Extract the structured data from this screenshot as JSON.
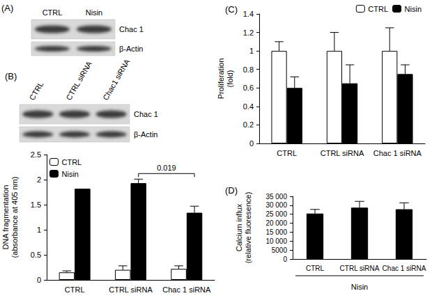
{
  "blots": [
    {
      "panel": "(A)",
      "lanes": [
        "CTRL",
        "Nisin"
      ],
      "bands": [
        "Chac 1",
        "β-Actin"
      ]
    },
    {
      "lanes": [
        "CTRL",
        "CTRL siRNA",
        "Chac1 siRNA"
      ],
      "bands": [
        "Chac 1",
        "β-Actin"
      ]
    }
  ],
  "chart_data": [
    {
      "type": "bar",
      "title": "(B)",
      "ylabel": "DNA fragmentation (absorbance at 405 nm)",
      "categories": [
        "CTRL",
        "CTRL siRNA",
        "Chac 1 siRNA"
      ],
      "series": [
        {
          "name": "CTRL",
          "color": "#ffffff",
          "values": [
            0.15,
            0.2,
            0.22
          ],
          "errors": [
            0.03,
            0.08,
            0.06
          ]
        },
        {
          "name": "Nisin",
          "color": "#000000",
          "values": [
            1.82,
            1.93,
            1.34
          ],
          "errors": [
            0,
            0.08,
            0.13
          ]
        }
      ],
      "ylim": [
        0,
        2.5
      ],
      "yticks": [
        0,
        0.5,
        1,
        1.5,
        2,
        2.5
      ],
      "grid": false,
      "legend": "upper left",
      "annotations": [
        {
          "text": "0.019",
          "series": "Nisin",
          "from": "CTRL siRNA",
          "to": "Chac 1 siRNA"
        }
      ]
    },
    {
      "type": "bar",
      "title": "(C)",
      "ylabel": "Proliferation (fold)",
      "categories": [
        "CTRL",
        "CTRL siRNA",
        "Chac 1 siRNA"
      ],
      "series": [
        {
          "name": "CTRL",
          "color": "#ffffff",
          "values": [
            1,
            1,
            1
          ],
          "errors": [
            0.1,
            0.2,
            0.25
          ]
        },
        {
          "name": "Nisin",
          "color": "#000000",
          "values": [
            0.6,
            0.65,
            0.75
          ],
          "errors": [
            0.12,
            0.2,
            0.1
          ]
        }
      ],
      "ylim": [
        0,
        1.4
      ],
      "yticks": [
        0,
        0.2,
        0.4,
        0.6,
        0.8,
        1,
        1.2,
        1.4
      ],
      "grid": false,
      "legend": "upper right"
    },
    {
      "type": "bar",
      "title": "(D)",
      "ylabel": "Calcium influx (relative fluoresence)",
      "xlabel": "Nisin",
      "categories": [
        "CTRL",
        "CTRL siRNA",
        "Chac 1 siRNA"
      ],
      "values": [
        25400,
        28700,
        27800
      ],
      "errors": [
        2300,
        3500,
        3600
      ],
      "color": "#000000",
      "ylim": [
        0,
        35000
      ],
      "yticks": [
        0,
        5000,
        {
          "value": 10000,
          "label": "10 000"
        },
        {
          "value": 15000,
          "label": "15 000"
        },
        {
          "value": 20000,
          "label": "20 000"
        },
        {
          "value": 25000,
          "label": "25 000"
        },
        {
          "value": 30000,
          "label": "30 000"
        },
        {
          "value": 35000,
          "label": "35 000"
        }
      ],
      "grid": false
    }
  ]
}
